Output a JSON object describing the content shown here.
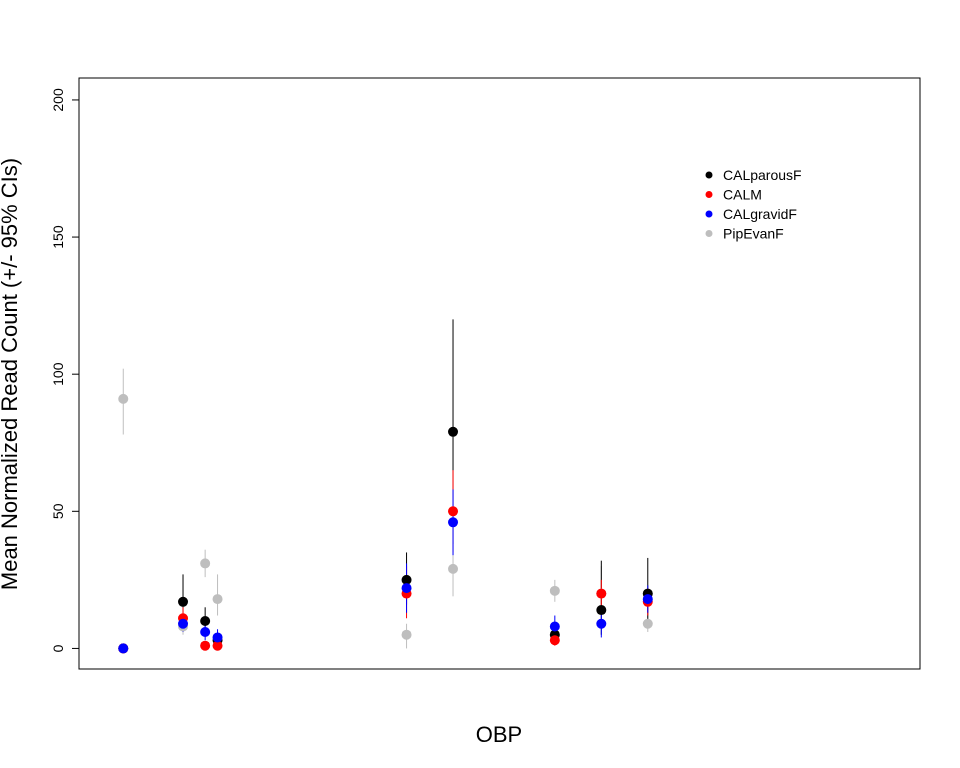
{
  "chart_data": {
    "type": "scatter",
    "title": "",
    "xlabel": "OBP",
    "ylabel": "Mean Normalized Read Count (+/- 95% CIs)",
    "xlim": [
      0,
      19
    ],
    "ylim": [
      -7.5,
      208
    ],
    "yticks": [
      0,
      50,
      100,
      150,
      200
    ],
    "grid": false,
    "legend_position": "top-right",
    "series": [
      {
        "name": "CALparousF",
        "color": "#000000",
        "points": [
          {
            "x": 1.0,
            "y": 0,
            "lo": 0,
            "hi": 0
          },
          {
            "x": 2.35,
            "y": 17,
            "lo": 8,
            "hi": 27
          },
          {
            "x": 2.85,
            "y": 10,
            "lo": 5,
            "hi": 15
          },
          {
            "x": 3.13,
            "y": 3,
            "lo": 1,
            "hi": 6
          },
          {
            "x": 7.4,
            "y": 25,
            "lo": 16,
            "hi": 35
          },
          {
            "x": 8.45,
            "y": 79,
            "lo": 38,
            "hi": 120
          },
          {
            "x": 10.75,
            "y": 5,
            "lo": 2,
            "hi": 8
          },
          {
            "x": 11.8,
            "y": 14,
            "lo": 5,
            "hi": 32
          },
          {
            "x": 12.85,
            "y": 20,
            "lo": 9,
            "hi": 33
          }
        ]
      },
      {
        "name": "CALM",
        "color": "#ff0000",
        "points": [
          {
            "x": 1.0,
            "y": 0,
            "lo": 0,
            "hi": 0
          },
          {
            "x": 2.35,
            "y": 11,
            "lo": 7,
            "hi": 15
          },
          {
            "x": 2.85,
            "y": 1,
            "lo": 0,
            "hi": 2
          },
          {
            "x": 3.13,
            "y": 1,
            "lo": 0,
            "hi": 2
          },
          {
            "x": 7.4,
            "y": 20,
            "lo": 11,
            "hi": 30
          },
          {
            "x": 8.45,
            "y": 50,
            "lo": 35,
            "hi": 65
          },
          {
            "x": 10.75,
            "y": 3,
            "lo": 1,
            "hi": 5
          },
          {
            "x": 11.8,
            "y": 20,
            "lo": 15,
            "hi": 25
          },
          {
            "x": 12.85,
            "y": 17,
            "lo": 12,
            "hi": 22
          }
        ]
      },
      {
        "name": "CALgravidF",
        "color": "#0000ff",
        "points": [
          {
            "x": 1.0,
            "y": 0,
            "lo": 0,
            "hi": 0
          },
          {
            "x": 2.35,
            "y": 9,
            "lo": 6,
            "hi": 12
          },
          {
            "x": 2.85,
            "y": 6,
            "lo": 3,
            "hi": 9
          },
          {
            "x": 3.13,
            "y": 4,
            "lo": 1,
            "hi": 7
          },
          {
            "x": 7.4,
            "y": 22,
            "lo": 13,
            "hi": 31
          },
          {
            "x": 8.45,
            "y": 46,
            "lo": 34,
            "hi": 58
          },
          {
            "x": 10.75,
            "y": 8,
            "lo": 4,
            "hi": 12
          },
          {
            "x": 11.8,
            "y": 9,
            "lo": 4,
            "hi": 14
          },
          {
            "x": 12.85,
            "y": 18,
            "lo": 13,
            "hi": 23
          }
        ]
      },
      {
        "name": "PipEvanF",
        "color": "#bebebe",
        "points": [
          {
            "x": 1.0,
            "y": 91,
            "lo": 78,
            "hi": 102
          },
          {
            "x": 2.35,
            "y": 8,
            "lo": 5,
            "hi": 11
          },
          {
            "x": 2.85,
            "y": 31,
            "lo": 26,
            "hi": 36
          },
          {
            "x": 3.13,
            "y": 18,
            "lo": 12,
            "hi": 27
          },
          {
            "x": 7.4,
            "y": 5,
            "lo": 0,
            "hi": 9
          },
          {
            "x": 8.45,
            "y": 29,
            "lo": 19,
            "hi": 39
          },
          {
            "x": 10.75,
            "y": 21,
            "lo": 17,
            "hi": 25
          },
          {
            "x": 11.8,
            "y": 20,
            "lo": 10,
            "hi": 30
          },
          {
            "x": 12.85,
            "y": 9,
            "lo": 6,
            "hi": 12
          }
        ]
      }
    ]
  }
}
